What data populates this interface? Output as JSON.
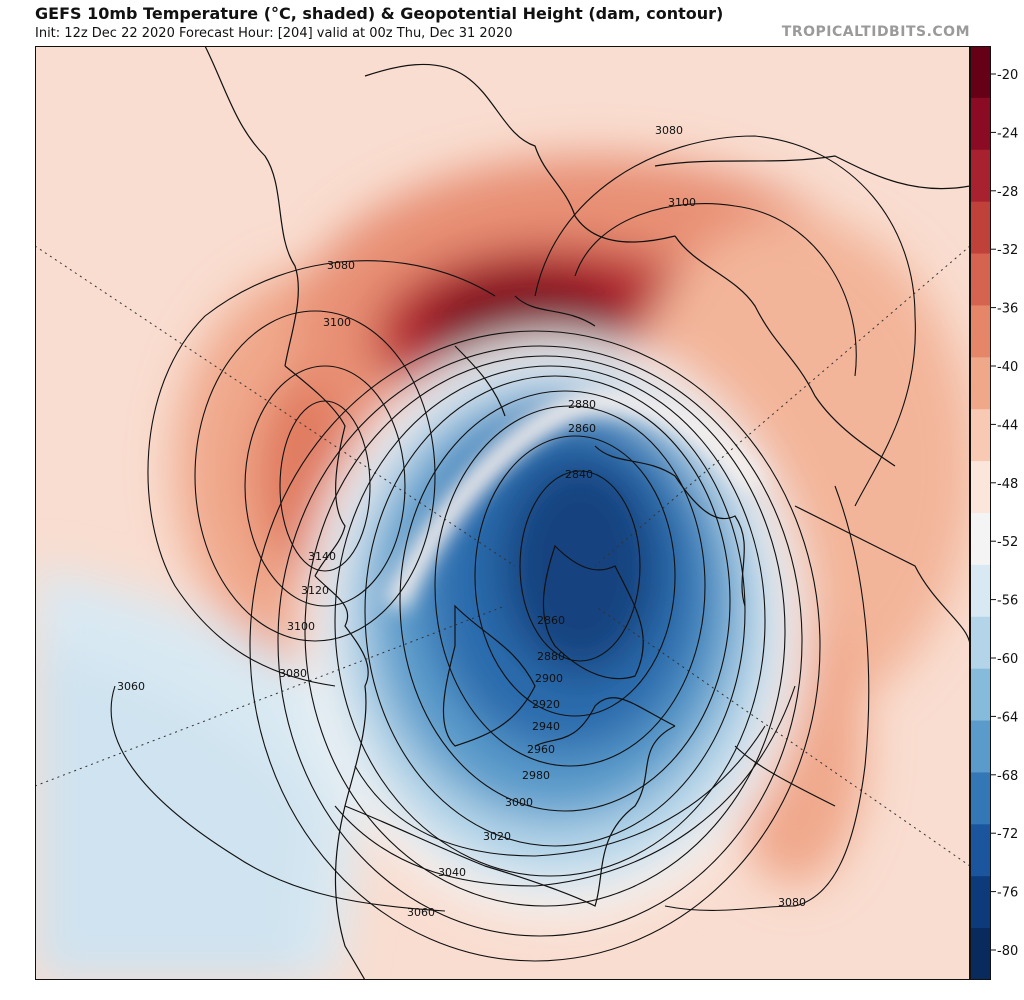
{
  "header": {
    "title": "GEFS 10mb Temperature (°C, shaded) & Geopotential Height (dam, contour)",
    "subtitle": "Init: 12z Dec 22 2020   Forecast Hour: [204]   valid at 00z Thu, Dec 31 2020",
    "watermark": "TROPICALTIDBITS.COM"
  },
  "colorbar": {
    "ticks": [
      "-20",
      "-24",
      "-28",
      "-32",
      "-36",
      "-40",
      "-44",
      "-48",
      "-52",
      "-56",
      "-60",
      "-64",
      "-68",
      "-72",
      "-76",
      "-80"
    ],
    "colors": [
      "#650017",
      "#8c0b24",
      "#a8212e",
      "#c0403a",
      "#d5634f",
      "#e68668",
      "#f0a88b",
      "#f8cab4",
      "#fae6da",
      "#f4f4f4",
      "#d8e9f3",
      "#b4d5e9",
      "#87bbdc",
      "#5a9bcb",
      "#3477b6",
      "#1a559d",
      "#0d3a7a",
      "#082a5c"
    ]
  },
  "contour_labels": {
    "c3080_tr": "3080",
    "c3100_tr": "3100",
    "c3080_nw": "3080",
    "c3100_nw": "3100",
    "c3140": "3140",
    "c3120": "3120",
    "c3100_w": "3100",
    "c3080_w": "3080",
    "c3060_w": "3060",
    "c2880_top": "2880",
    "c2860_top": "2860",
    "c2840": "2840",
    "c2860_mid": "2860",
    "c2880_mid": "2880",
    "c2900": "2900",
    "c2920": "2920",
    "c2940": "2940",
    "c2960": "2960",
    "c2980": "2980",
    "c3000": "3000",
    "c3020": "3020",
    "c3040": "3040",
    "c3060_s": "3060",
    "c3080_se": "3080"
  }
}
